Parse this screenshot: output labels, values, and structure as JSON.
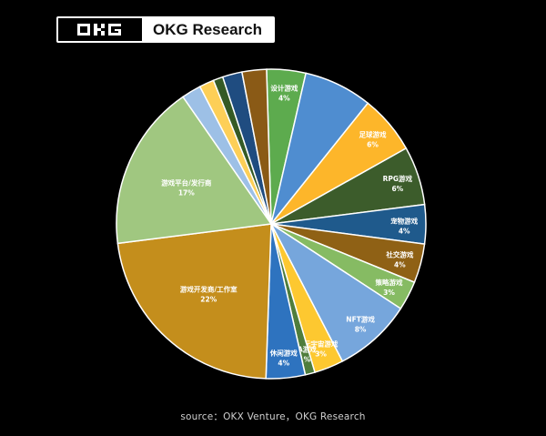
{
  "brand": {
    "logo_text": "OKG",
    "name": "OKG Research"
  },
  "source": "source：OKX Venture，OKG Research",
  "chart_data": {
    "type": "pie",
    "title": "",
    "slices": [
      {
        "label": "设计游戏",
        "value": 4,
        "display": "4%",
        "color": "#5dab4e"
      },
      {
        "label": "",
        "value": 7,
        "display": "",
        "color": "#4f8dd0"
      },
      {
        "label": "足球游戏",
        "value": 6,
        "display": "6%",
        "color": "#fdb62a"
      },
      {
        "label": "RPG游戏",
        "value": 6,
        "display": "6%",
        "color": "#3c5c2b"
      },
      {
        "label": "宠物游戏",
        "value": 4,
        "display": "4%",
        "color": "#1f5a8c"
      },
      {
        "label": "社交游戏",
        "value": 4,
        "display": "4%",
        "color": "#8f6115"
      },
      {
        "label": "策略游戏",
        "value": 3,
        "display": "3%",
        "color": "#86bb63"
      },
      {
        "label": "NFT游戏",
        "value": 8,
        "display": "8%",
        "color": "#76a6dc"
      },
      {
        "label": "元宇宙游戏",
        "value": 3,
        "display": "3%",
        "color": "#fdc830"
      },
      {
        "label": "3A游戏",
        "value": 1,
        "display": "1%",
        "color": "#4f7d3c"
      },
      {
        "label": "休闲游戏",
        "value": 4,
        "display": "4%",
        "color": "#2e73bf"
      },
      {
        "label": "游戏开发商/工作室",
        "value": 22,
        "display": "22%",
        "color": "#c48e1c"
      },
      {
        "label": "游戏平台/发行商",
        "value": 17,
        "display": "17%",
        "color": "#a0c780"
      },
      {
        "label": "",
        "value": 2,
        "display": "",
        "color": "#9dc0e6"
      },
      {
        "label": "",
        "value": 1.5,
        "display": "",
        "color": "#fdcf57"
      },
      {
        "label": "",
        "value": 1,
        "display": "",
        "color": "#355a25"
      },
      {
        "label": "",
        "value": 2,
        "display": "",
        "color": "#1f4c80"
      },
      {
        "label": "",
        "value": 2.5,
        "display": "",
        "color": "#8a5a16"
      }
    ]
  }
}
